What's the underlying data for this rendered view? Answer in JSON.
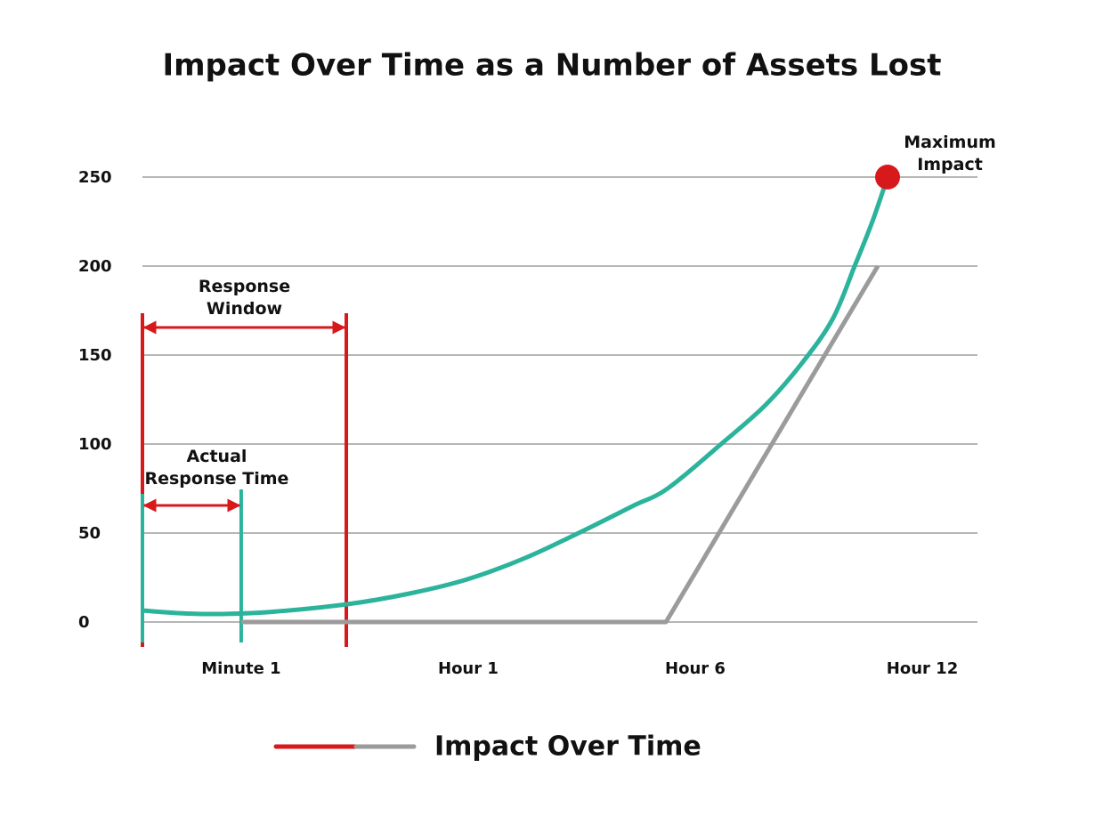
{
  "chart_data": {
    "type": "line",
    "title": "Impact Over Time as a Number of Assets Lost",
    "xlim": [
      0.565,
      4.243
    ],
    "xticks": [
      {
        "value": 1,
        "label": "Minute 1"
      },
      {
        "value": 2,
        "label": "Hour 1"
      },
      {
        "value": 3,
        "label": "Hour 6"
      },
      {
        "value": 4,
        "label": "Hour 12"
      }
    ],
    "ylim": [
      0,
      250
    ],
    "yticks": [
      0,
      50,
      100,
      150,
      200,
      250
    ],
    "grid": true,
    "series": [
      {
        "color": "#2bb39b",
        "x": [
          0.565,
          0.722,
          0.878,
          1.114,
          1.467,
          1.741,
          1.996,
          2.251,
          2.486,
          2.722,
          2.878,
          3.114,
          3.31,
          3.467,
          3.604,
          3.702,
          3.78,
          3.847
        ],
        "values": [
          6.5,
          5,
          4.5,
          5.5,
          10,
          16,
          24,
          36,
          50,
          65,
          75,
          100,
          122,
          145,
          170,
          200,
          225,
          250
        ]
      },
      {
        "color": "#9b9b9b",
        "x": [
          1.0,
          2.871,
          3.804
        ],
        "values": [
          0,
          0,
          200
        ]
      }
    ],
    "max_point": {
      "x": 3.847,
      "y": 250,
      "label": [
        "Maximum",
        "Impact"
      ],
      "color": "#d7191c"
    },
    "annotations": [
      {
        "text": [
          "Response",
          "Window"
        ],
        "x": [
          0.565,
          1.463
        ],
        "color": "#d7191c"
      },
      {
        "text": [
          "Actual",
          "Response Time"
        ],
        "x": [
          0.565,
          1.0
        ],
        "color": "#2bb39b"
      }
    ],
    "legend": {
      "label": "Impact Over Time",
      "colors": [
        "#d7191c",
        "#9b9b9b"
      ]
    }
  }
}
